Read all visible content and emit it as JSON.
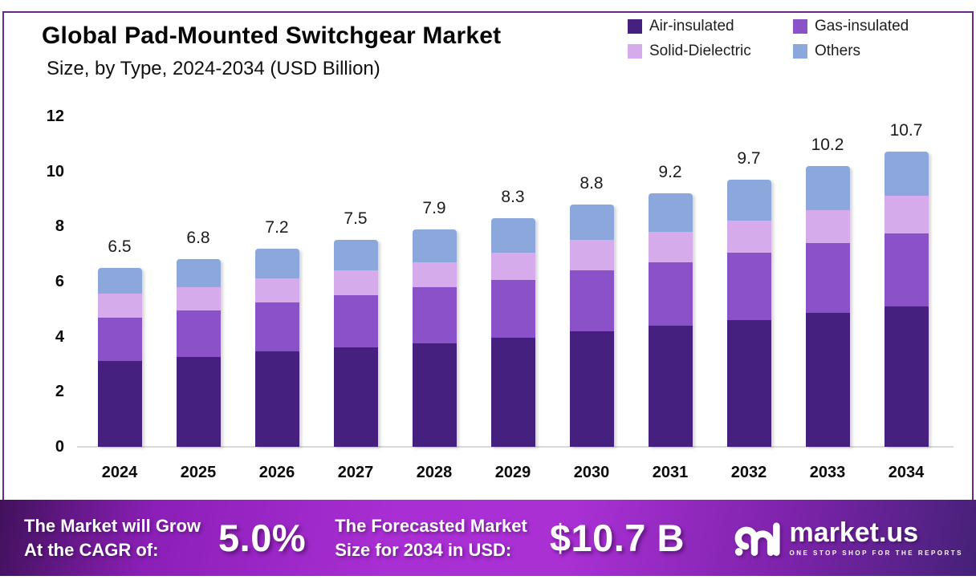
{
  "title": "Global Pad-Mounted Switchgear Market",
  "subtitle": "Size, by Type, 2024-2034 (USD Billion)",
  "legend": {
    "items": [
      {
        "label": "Air-insulated",
        "color": "#46207F"
      },
      {
        "label": "Gas-insulated",
        "color": "#8B51C9"
      },
      {
        "label": "Solid-Dielectric",
        "color": "#D5ABEB"
      },
      {
        "label": "Others",
        "color": "#8BA7DB"
      }
    ]
  },
  "chart_data": {
    "type": "bar",
    "stacked": true,
    "title": "Global Pad-Mounted Switchgear Market Size, by Type, 2024-2034 (USD Billion)",
    "categories": [
      "2024",
      "2025",
      "2026",
      "2027",
      "2028",
      "2029",
      "2030",
      "2031",
      "2032",
      "2033",
      "2034"
    ],
    "series": [
      {
        "name": "Air-insulated",
        "color": "#46207F",
        "values": [
          3.1,
          3.25,
          3.45,
          3.6,
          3.75,
          3.95,
          4.2,
          4.4,
          4.6,
          4.85,
          5.1
        ]
      },
      {
        "name": "Gas-insulated",
        "color": "#8B51C9",
        "values": [
          1.6,
          1.7,
          1.8,
          1.9,
          2.05,
          2.1,
          2.2,
          2.3,
          2.45,
          2.55,
          2.65
        ]
      },
      {
        "name": "Solid-Dielectric",
        "color": "#D5ABEB",
        "values": [
          0.85,
          0.85,
          0.85,
          0.9,
          0.9,
          1.0,
          1.1,
          1.1,
          1.15,
          1.2,
          1.35
        ]
      },
      {
        "name": "Others",
        "color": "#8BA7DB",
        "values": [
          0.95,
          1.0,
          1.1,
          1.1,
          1.2,
          1.25,
          1.3,
          1.4,
          1.5,
          1.6,
          1.6
        ]
      }
    ],
    "totals": [
      6.5,
      6.8,
      7.2,
      7.5,
      7.9,
      8.3,
      8.8,
      9.2,
      9.7,
      10.2,
      10.7
    ],
    "xlabel": "",
    "ylabel": "",
    "y_axis": {
      "min": 0,
      "max": 12,
      "ticks": [
        0,
        2,
        4,
        6,
        8,
        10,
        12
      ]
    },
    "grid": false,
    "legend_position": "top-right"
  },
  "banner": {
    "cagr_label_line1": "The Market will Grow",
    "cagr_label_line2": "At the CAGR of:",
    "cagr_value": "5.0%",
    "forecast_label_line1": "The Forecasted Market",
    "forecast_label_line2": "Size for 2034 in USD:",
    "forecast_value": "$10.7 B",
    "brand": {
      "name": "market.us",
      "tagline": "ONE STOP SHOP FOR THE REPORTS"
    }
  },
  "colors": {
    "frame_border": "#6B2B85",
    "axis_line": "#D9D9D9",
    "banner_gradient": [
      "#41115C",
      "#8C1FB8",
      "#A92ED3",
      "#AA30D4",
      "#7E23AC",
      "#452178"
    ]
  }
}
